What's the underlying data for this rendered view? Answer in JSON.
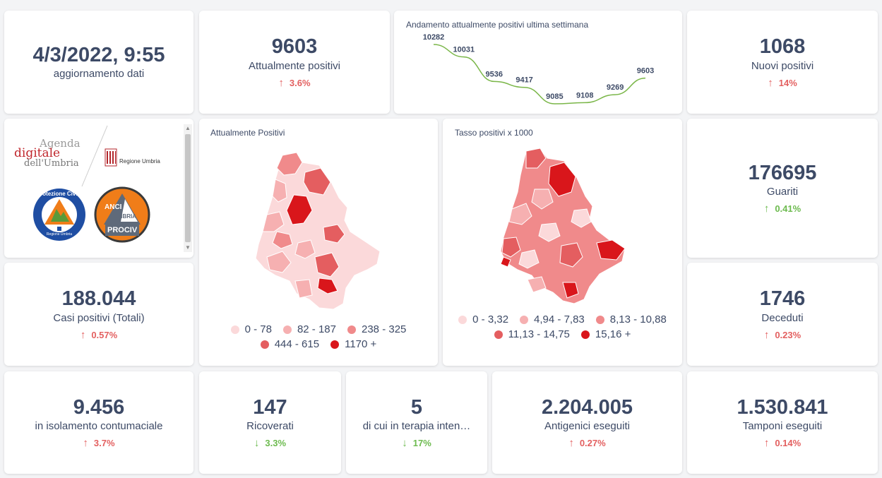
{
  "update": {
    "datetime": "4/3/2022, 9:55",
    "label": "aggiornamento dati"
  },
  "attualmente_positivi": {
    "value": "9603",
    "label": "Attualmente positivi",
    "trend": "3.6%",
    "direction": "up"
  },
  "trend_chart": {
    "title": "Andamento attualmente positivi ultima settimana",
    "chart_data": {
      "type": "line",
      "title": "Andamento attualmente positivi ultima settimana",
      "values": [
        10282,
        10031,
        9536,
        9417,
        9085,
        9108,
        9269,
        9603
      ],
      "labels": [
        "10282",
        "10031",
        "9536",
        "9417",
        "9085",
        "9108",
        "9269",
        "9603"
      ],
      "color": "#7ab648"
    }
  },
  "nuovi_positivi": {
    "value": "1068",
    "label": "Nuovi positivi",
    "trend": "14%",
    "direction": "up"
  },
  "logos": {
    "agenda_line1": "Agenda",
    "agenda_line2": "digitale",
    "agenda_line3": "dell'Umbria",
    "regione": "Regione Umbria",
    "protezione_ring": "Protezione Civile",
    "protezione_sub": "Regione Umbria",
    "anci_line1": "ANCI",
    "anci_line2": "UMBRIA",
    "anci_line3": "PROCIV"
  },
  "map_positivi": {
    "title": "Attualmente Positivi",
    "legend": [
      {
        "label": "0 - 78",
        "color": "#fbd9da"
      },
      {
        "label": "82 - 187",
        "color": "#f6b0b1"
      },
      {
        "label": "238 - 325",
        "color": "#f08a8b"
      },
      {
        "label": "444 - 615",
        "color": "#e45e60"
      },
      {
        "label": "1170 +",
        "color": "#d9161b"
      }
    ]
  },
  "map_tasso": {
    "title": "Tasso positivi x 1000",
    "legend": [
      {
        "label": "0 - 3,32",
        "color": "#fbd9da"
      },
      {
        "label": "4,94 - 7,83",
        "color": "#f6b0b1"
      },
      {
        "label": "8,13 - 10,88",
        "color": "#f08a8b"
      },
      {
        "label": "11,13 - 14,75",
        "color": "#e45e60"
      },
      {
        "label": "15,16 +",
        "color": "#d9161b"
      }
    ]
  },
  "guariti": {
    "value": "176695",
    "label": "Guariti",
    "trend": "0.41%",
    "direction": "down_green"
  },
  "casi_totali": {
    "value": "188.044",
    "label": "Casi positivi (Totali)",
    "trend": "0.57%",
    "direction": "up"
  },
  "deceduti": {
    "value": "1746",
    "label": "Deceduti",
    "trend": "0.23%",
    "direction": "up"
  },
  "isolamento": {
    "value": "9.456",
    "label": "in isolamento contumaciale",
    "trend": "3.7%",
    "direction": "up"
  },
  "ricoverati": {
    "value": "147",
    "label": "Ricoverati",
    "trend": "3.3%",
    "direction": "down"
  },
  "terapia": {
    "value": "5",
    "label": "di cui in terapia inten…",
    "trend": "17%",
    "direction": "down"
  },
  "antigenici": {
    "value": "2.204.005",
    "label": "Antigenici eseguiti",
    "trend": "0.27%",
    "direction": "up"
  },
  "tamponi": {
    "value": "1.530.841",
    "label": "Tamponi eseguiti",
    "trend": "0.14%",
    "direction": "up"
  },
  "icons": {
    "up": "↑",
    "down": "↓"
  },
  "colors": {
    "up": "#e36060",
    "down": "#6dbb4f",
    "text": "#3d4a66"
  }
}
